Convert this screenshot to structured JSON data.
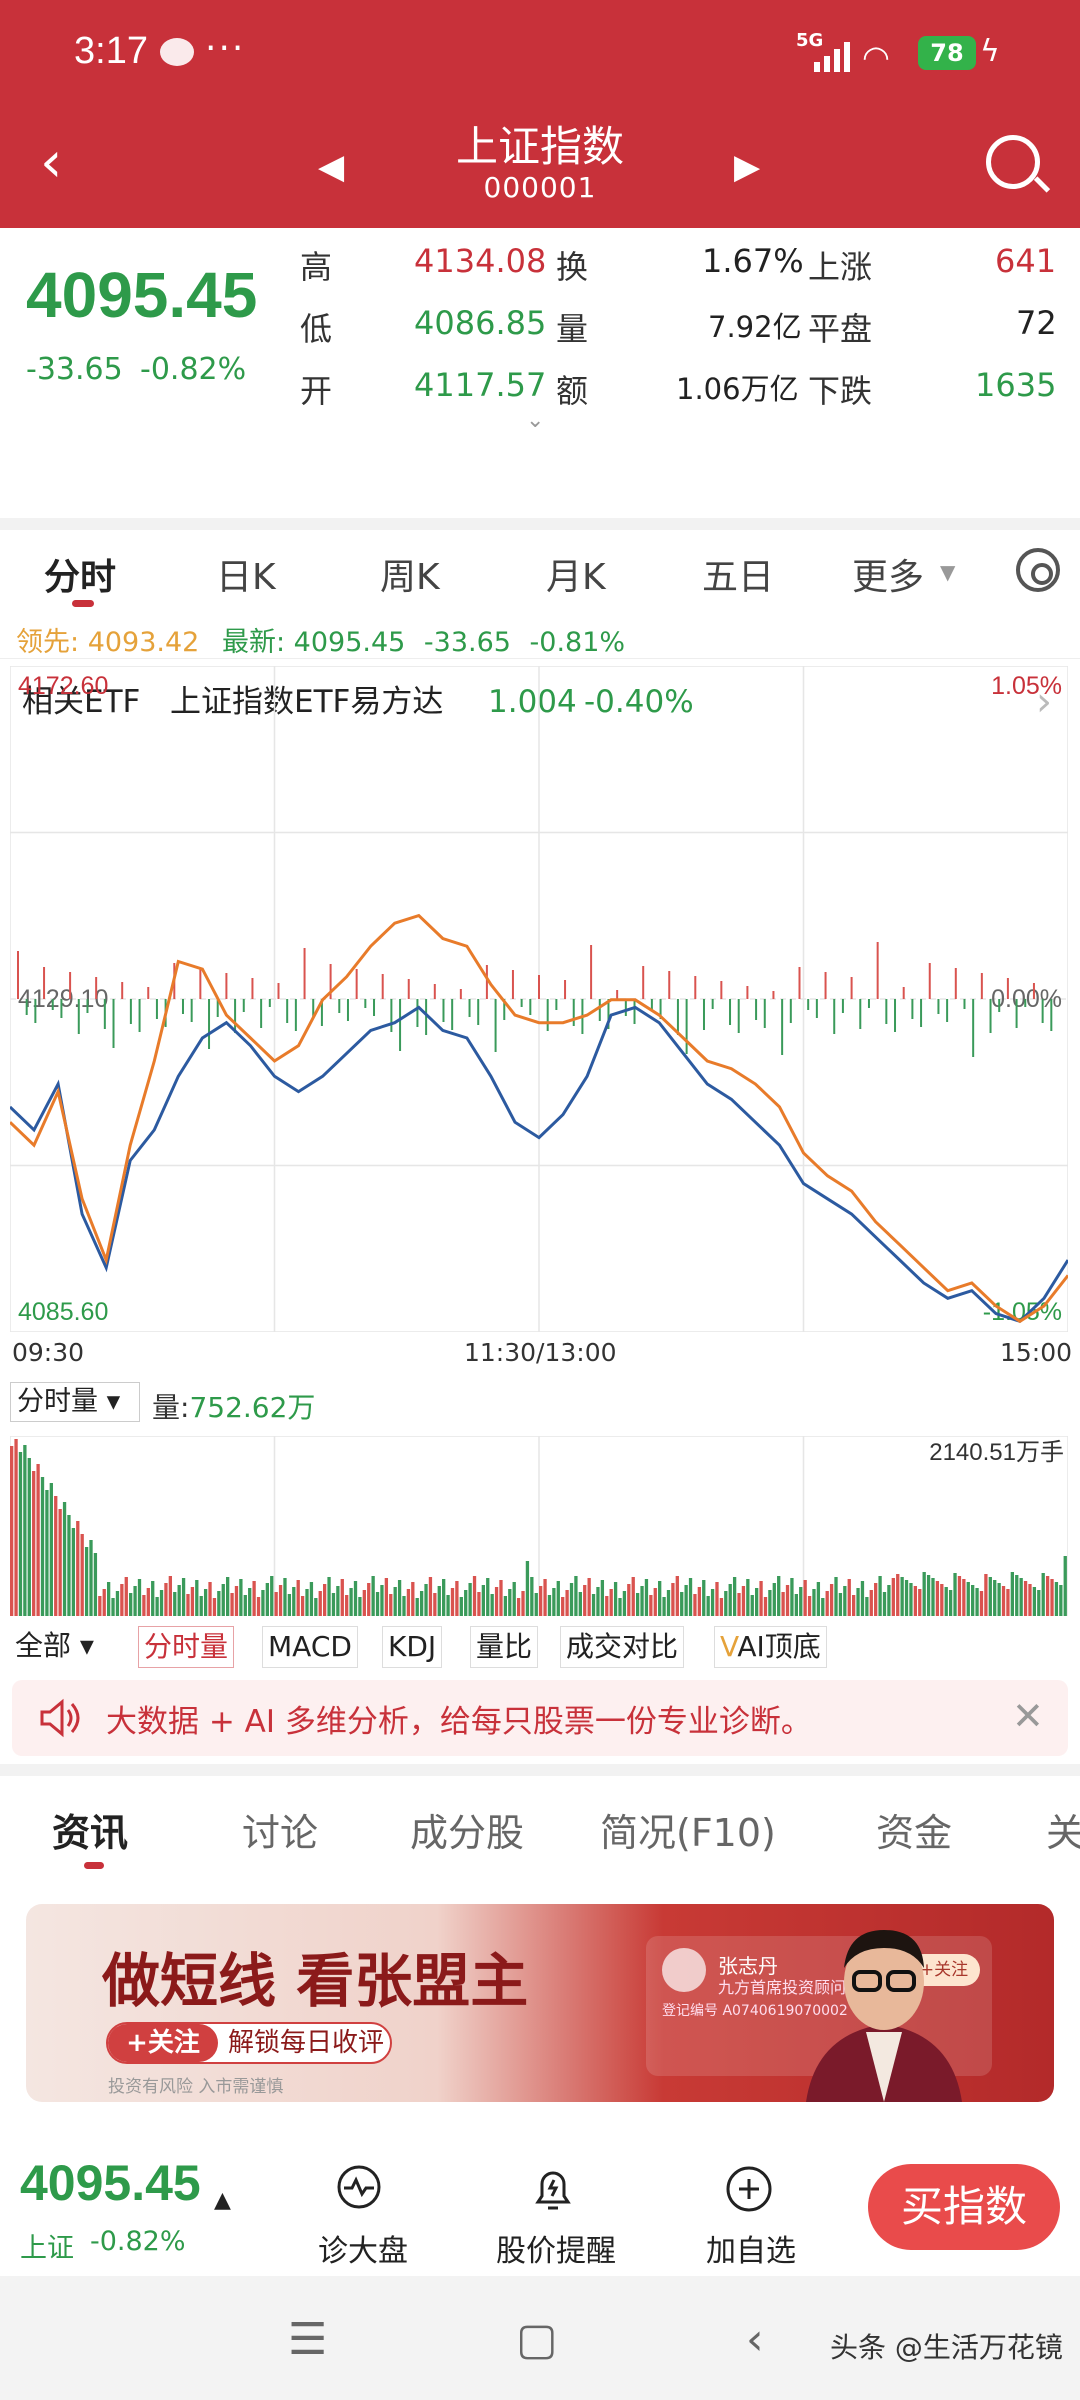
{
  "status": {
    "time": "3:17",
    "more": "···",
    "network": "5G",
    "battery": "78"
  },
  "header": {
    "title": "上证指数",
    "code": "000001"
  },
  "quote": {
    "price": "4095.45",
    "change": "-33.65",
    "change_pct": "-0.82%",
    "high_label": "高",
    "high": "4134.08",
    "low_label": "低",
    "low": "4086.85",
    "open_label": "开",
    "open": "4117.57",
    "turnover_label": "换",
    "turnover": "1.67%",
    "volume_label": "量",
    "volume": "7.92亿",
    "amount_label": "额",
    "amount": "1.06万亿",
    "rise_label": "上涨",
    "rise": "641",
    "flat_label": "平盘",
    "flat": "72",
    "fall_label": "下跌",
    "fall": "1635"
  },
  "etf": {
    "label": "相关ETF",
    "name": "上证指数ETF易方达",
    "price": "1.004",
    "pct": "-0.40%"
  },
  "chart_tabs": [
    "分时",
    "日K",
    "周K",
    "月K",
    "五日",
    "更多"
  ],
  "legend": {
    "lead_label": "领先:",
    "lead": "4093.42",
    "latest_label": "最新:",
    "latest": "4095.45",
    "chg": "-33.65",
    "pct": "-0.81%"
  },
  "chart_data": {
    "type": "line",
    "title": "",
    "xlabel": "",
    "ylabel": "",
    "y_labels": {
      "top": "4172.60",
      "mid": "4129.10",
      "bottom": "4085.60",
      "top_pct": "1.05%",
      "mid_pct": "0.00%",
      "bottom_pct": "-1.05%"
    },
    "ylim": [
      4085.6,
      4172.6
    ],
    "x_ticks": [
      "09:30",
      "11:30/13:00",
      "15:00"
    ],
    "series": [
      {
        "values": [
          4115,
          4112,
          4118,
          4101,
          4094,
          4108,
          4112,
          4119,
          4124,
          4126,
          4123,
          4119,
          4117,
          4119,
          4122,
          4125,
          4126,
          4128,
          4125,
          4124,
          4119,
          4113,
          4111,
          4114,
          4119,
          4127,
          4128,
          4126,
          4122,
          4118,
          4116,
          4113,
          4110,
          4105,
          4103,
          4101,
          4098,
          4095,
          4092,
          4090,
          4091,
          4088,
          4087,
          4090,
          4095
        ]
      },
      {
        "values": [
          4113,
          4110,
          4117,
          4103,
          4095,
          4110,
          4121,
          4134,
          4133,
          4127,
          4124,
          4121,
          4123,
          4129,
          4132,
          4136,
          4139,
          4140,
          4137,
          4136,
          4131,
          4127,
          4126,
          4126,
          4127,
          4129,
          4129,
          4127,
          4124,
          4121,
          4120,
          4118,
          4115,
          4109,
          4106,
          4104,
          4100,
          4097,
          4094,
          4091,
          4092,
          4089,
          4087,
          4089,
          4093
        ]
      }
    ]
  },
  "volume": {
    "selector": "分时量",
    "label": "量:",
    "value": "752.62万",
    "max": "2140.51万手"
  },
  "indicators": [
    "全部",
    "分时量",
    "MACD",
    "KDJ",
    "量比",
    "成交对比",
    "AI顶底"
  ],
  "notice": "大数据 + AI 多维分析，给每只股票一份专业诊断。",
  "news_tabs": [
    "资讯",
    "讨论",
    "成分股",
    "简况(F10)",
    "资金",
    "关"
  ],
  "ad": {
    "headline": "做短线 看张盟主",
    "follow": "+关注",
    "unlock": "解锁每日收评",
    "risk": "投资有风险  入市需谨慎",
    "name": "张志丹",
    "org": "九方首席投资顾问",
    "reg": "登记编号 A0740619070002",
    "follow_btn": "+关注"
  },
  "bottom": {
    "price": "4095.45",
    "market": "上证",
    "pct": "-0.82%",
    "diag": "诊大盘",
    "alert": "股价提醒",
    "add": "加自选",
    "buy": "买指数"
  },
  "watermark": "头条 @生活万花镜"
}
